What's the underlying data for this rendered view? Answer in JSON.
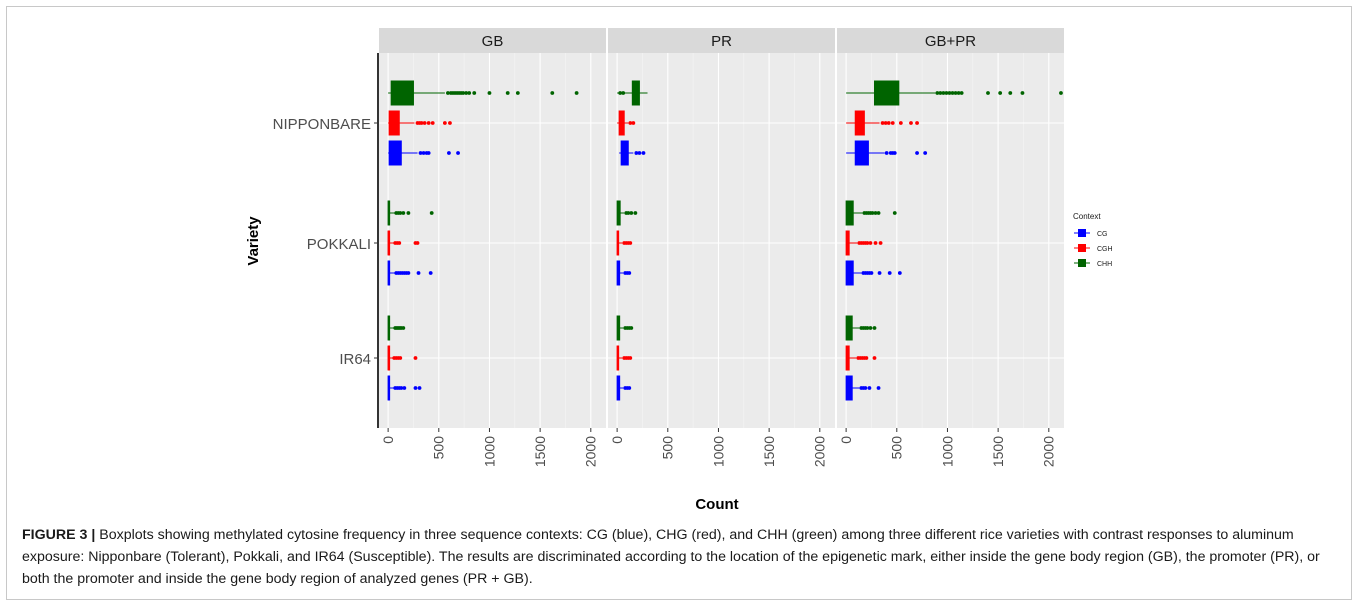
{
  "chart_data": {
    "type": "boxplot",
    "facets": [
      "GB",
      "PR",
      "GB+PR"
    ],
    "categories": [
      "NIPPONBARE",
      "POKKALI",
      "IR64"
    ],
    "xlabel": "Count",
    "ylabel": "Variety",
    "xlim": [
      -90,
      2150
    ],
    "xticks": [
      0,
      500,
      1000,
      1500,
      2000
    ],
    "legend": {
      "title": "Context",
      "position": "right",
      "entries": [
        {
          "name": "CG",
          "color": "#0000ff"
        },
        {
          "name": "CGH",
          "color": "#ff0000"
        },
        {
          "name": "CHH",
          "color": "#006400"
        }
      ]
    },
    "context_order": [
      "CHH",
      "CGH",
      "CG"
    ],
    "boxes": {
      "GB": {
        "NIPPONBARE": {
          "CHH": {
            "min": 0,
            "q1": 30,
            "median": 150,
            "q3": 250,
            "max": 560,
            "outliers": [
              590,
              620,
              640,
              660,
              680,
              700,
              720,
              740,
              770,
              800,
              850,
              1000,
              1180,
              1280,
              1620,
              1860
            ]
          },
          "CGH": {
            "min": 0,
            "q1": 10,
            "median": 40,
            "q3": 110,
            "max": 260,
            "outliers": [
              290,
              310,
              330,
              360,
              400,
              440,
              560,
              610
            ]
          },
          "CG": {
            "min": 0,
            "q1": 10,
            "median": 50,
            "q3": 130,
            "max": 290,
            "outliers": [
              320,
              350,
              380,
              400,
              600,
              690
            ]
          }
        },
        "POKKALI": {
          "CHH": {
            "min": 0,
            "q1": 0,
            "median": 5,
            "q3": 15,
            "max": 70,
            "outliers": [
              80,
              100,
              120,
              150,
              200,
              430
            ]
          },
          "CGH": {
            "min": 0,
            "q1": 0,
            "median": 3,
            "q3": 10,
            "max": 60,
            "outliers": [
              70,
              90,
              110,
              270,
              290
            ]
          },
          "CG": {
            "min": 0,
            "q1": 0,
            "median": 5,
            "q3": 15,
            "max": 70,
            "outliers": [
              80,
              100,
              120,
              140,
              160,
              180,
              200,
              300,
              420
            ]
          }
        },
        "IR64": {
          "CHH": {
            "min": 0,
            "q1": 0,
            "median": 5,
            "q3": 12,
            "max": 60,
            "outliers": [
              70,
              85,
              100,
              115,
              130,
              150
            ]
          },
          "CGH": {
            "min": 0,
            "q1": 0,
            "median": 3,
            "q3": 10,
            "max": 50,
            "outliers": [
              60,
              80,
              100,
              120,
              270
            ]
          },
          "CG": {
            "min": 0,
            "q1": 0,
            "median": 5,
            "q3": 12,
            "max": 60,
            "outliers": [
              70,
              90,
              110,
              130,
              160,
              270,
              310
            ]
          }
        }
      },
      "PR": {
        "NIPPONBARE": {
          "CHH": {
            "min": 0,
            "q1": 150,
            "median": 190,
            "q3": 220,
            "max": 300,
            "outliers": [
              30,
              60
            ]
          },
          "CGH": {
            "min": 0,
            "q1": 20,
            "median": 40,
            "q3": 70,
            "max": 110,
            "outliers": [
              130,
              160
            ]
          },
          "CG": {
            "min": 20,
            "q1": 40,
            "median": 70,
            "q3": 110,
            "max": 160,
            "outliers": [
              190,
              220,
              260
            ]
          }
        },
        "POKKALI": {
          "CHH": {
            "min": 0,
            "q1": 0,
            "median": 10,
            "q3": 30,
            "max": 70,
            "outliers": [
              90,
              110,
              140,
              180
            ]
          },
          "CGH": {
            "min": 0,
            "q1": 0,
            "median": 5,
            "q3": 15,
            "max": 50,
            "outliers": [
              70,
              90,
              110,
              130
            ]
          },
          "CG": {
            "min": 0,
            "q1": 0,
            "median": 8,
            "q3": 25,
            "max": 60,
            "outliers": [
              80,
              100,
              120
            ]
          }
        },
        "IR64": {
          "CHH": {
            "min": 0,
            "q1": 0,
            "median": 8,
            "q3": 25,
            "max": 60,
            "outliers": [
              80,
              100,
              120,
              140
            ]
          },
          "CGH": {
            "min": 0,
            "q1": 0,
            "median": 5,
            "q3": 15,
            "max": 50,
            "outliers": [
              70,
              90,
              110,
              130
            ]
          },
          "CG": {
            "min": 0,
            "q1": 0,
            "median": 8,
            "q3": 25,
            "max": 60,
            "outliers": [
              80,
              100,
              120
            ]
          }
        }
      },
      "GB+PR": {
        "NIPPONBARE": {
          "CHH": {
            "min": 0,
            "q1": 280,
            "median": 400,
            "q3": 520,
            "max": 880,
            "outliers": [
              900,
              930,
              960,
              990,
              1020,
              1050,
              1080,
              1110,
              1140,
              1400,
              1520,
              1620,
              1740,
              2120
            ]
          },
          "CGH": {
            "min": 0,
            "q1": 90,
            "median": 150,
            "q3": 180,
            "max": 330,
            "outliers": [
              360,
              390,
              420,
              460,
              540,
              640,
              700
            ]
          },
          "CG": {
            "min": 0,
            "q1": 90,
            "median": 170,
            "q3": 220,
            "max": 380,
            "outliers": [
              400,
              440,
              460,
              480,
              700,
              780
            ]
          }
        },
        "POKKALI": {
          "CHH": {
            "min": 0,
            "q1": 0,
            "median": 30,
            "q3": 70,
            "max": 160,
            "outliers": [
              180,
              200,
              220,
              240,
              260,
              290,
              320,
              480
            ]
          },
          "CGH": {
            "min": 0,
            "q1": 0,
            "median": 10,
            "q3": 30,
            "max": 110,
            "outliers": [
              130,
              150,
              170,
              190,
              210,
              240,
              290,
              340
            ]
          },
          "CG": {
            "min": 0,
            "q1": 0,
            "median": 30,
            "q3": 70,
            "max": 150,
            "outliers": [
              170,
              190,
              210,
              230,
              250,
              330,
              430,
              530
            ]
          }
        },
        "IR64": {
          "CHH": {
            "min": 0,
            "q1": 0,
            "median": 20,
            "q3": 60,
            "max": 130,
            "outliers": [
              150,
              170,
              190,
              210,
              240,
              280
            ]
          },
          "CGH": {
            "min": 0,
            "q1": 0,
            "median": 10,
            "q3": 30,
            "max": 100,
            "outliers": [
              120,
              140,
              160,
              180,
              200,
              280
            ]
          },
          "CG": {
            "min": 0,
            "q1": 0,
            "median": 20,
            "q3": 60,
            "max": 130,
            "outliers": [
              150,
              170,
              190,
              230,
              320
            ]
          }
        }
      }
    }
  },
  "caption": {
    "label": "FIGURE 3 |",
    "text": "Boxplots showing methylated cytosine frequency in three sequence contexts: CG (blue), CHG (red), and CHH (green) among three different rice varieties with contrast responses to aluminum exposure: Nipponbare (Tolerant), Pokkali, and IR64 (Susceptible). The results are discriminated according to the location of the epigenetic mark, either inside the gene body region (GB), the promoter (PR), or both the promoter and inside the gene body region of analyzed genes (PR + GB)."
  }
}
